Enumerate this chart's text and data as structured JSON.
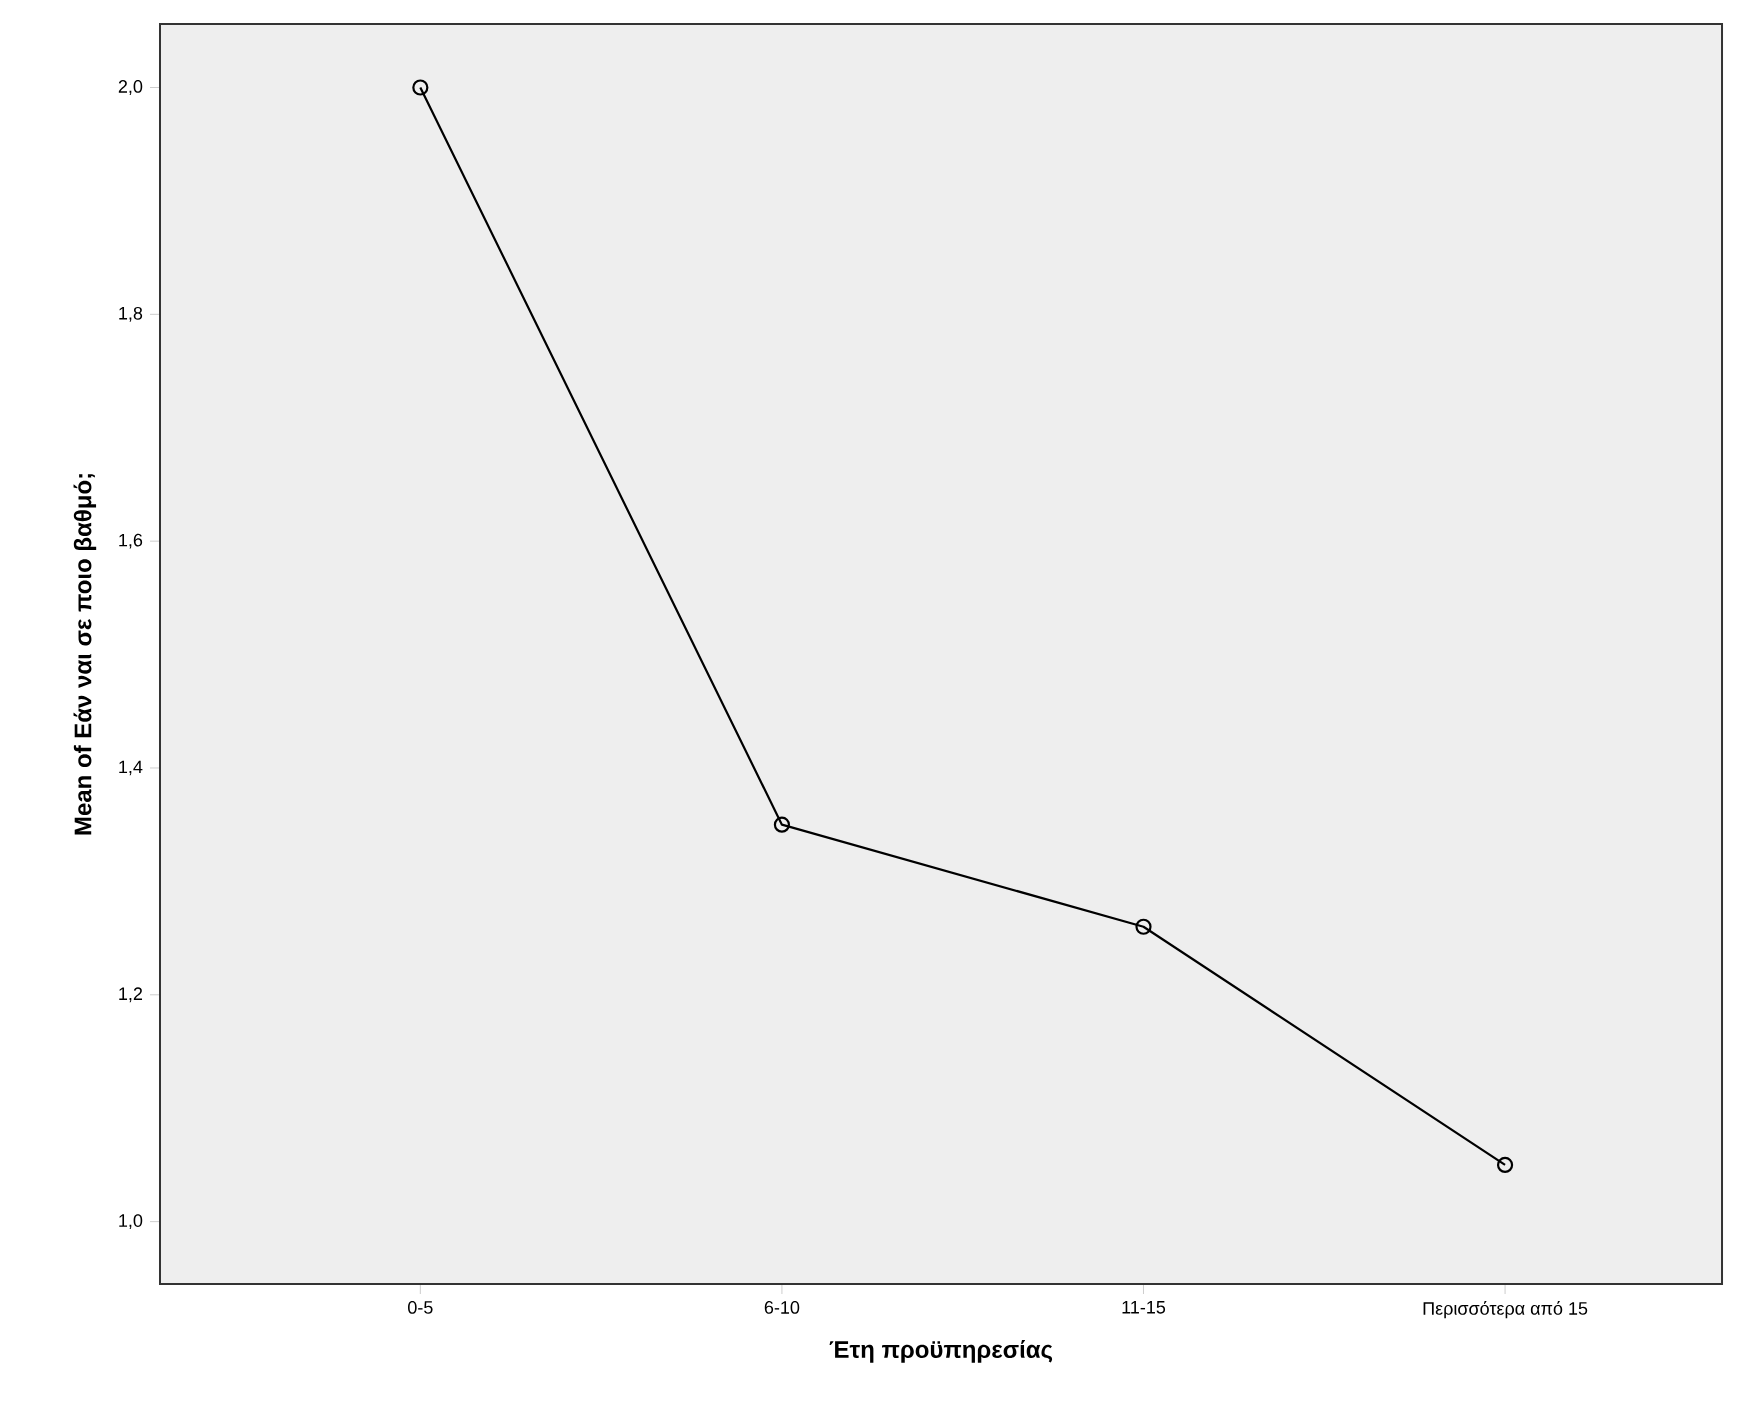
{
  "chart_data": {
    "type": "line",
    "xlabel": "Έτη προϋπηρεσίας",
    "ylabel": "Mean of Εάν ναι σε ποιο βαθμό;",
    "categories": [
      "0-5",
      "6-10",
      "11-15",
      "Περισσότερα από 15"
    ],
    "series": [
      {
        "color": "#000000",
        "values": [
          2.0,
          1.35,
          1.26,
          1.05
        ]
      }
    ],
    "ylim": [
      0.945,
      2.056
    ],
    "yticks": [
      {
        "value": 1.0,
        "label": "1,0"
      },
      {
        "value": 1.2,
        "label": "1,2"
      },
      {
        "value": 1.4,
        "label": "1,4"
      },
      {
        "value": 1.6,
        "label": "1,6"
      },
      {
        "value": 1.8,
        "label": "1,8"
      },
      {
        "value": 2.0,
        "label": "2,0"
      }
    ],
    "marker": "circle",
    "line_style": "solid"
  }
}
